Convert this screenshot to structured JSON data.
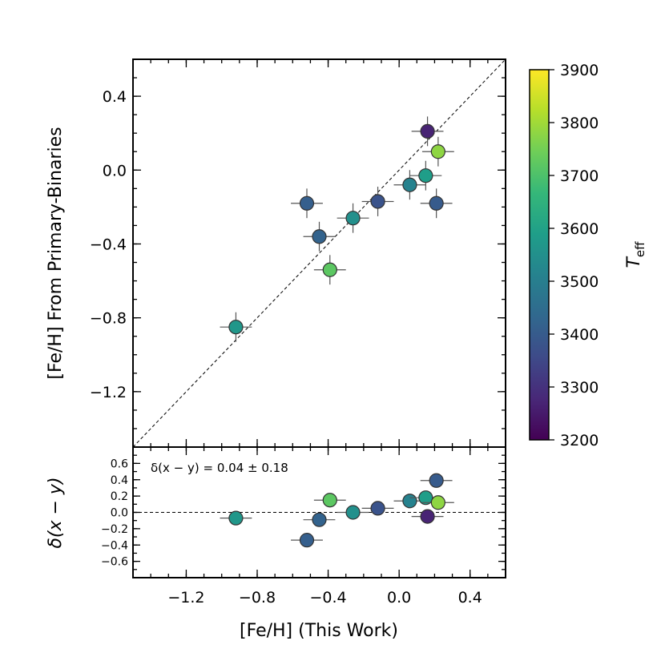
{
  "chart_data": [
    {
      "type": "scatter",
      "panel": "main",
      "xlabel": "[Fe/H] (This Work)",
      "ylabel": "[Fe/H] From Primary-Binaries",
      "xlim": [
        -1.5,
        0.6
      ],
      "ylim": [
        -1.5,
        0.6
      ],
      "x_ticks": [
        -1.2,
        -0.8,
        -0.4,
        0.0,
        0.4
      ],
      "x_tick_labels": [
        "−1.2",
        "−0.8",
        "−0.4",
        "0.0",
        "0.4"
      ],
      "y_ticks": [
        -1.2,
        -0.8,
        -0.4,
        0.0,
        0.4
      ],
      "y_tick_labels": [
        "−1.2",
        "−0.8",
        "−0.4",
        "0.0",
        "0.4"
      ],
      "reference_line": "y = x",
      "x_error": 0.09,
      "y_error": 0.08,
      "points": [
        {
          "x": -0.92,
          "y": -0.85,
          "teff": 3570
        },
        {
          "x": -0.52,
          "y": -0.18,
          "teff": 3410
        },
        {
          "x": -0.45,
          "y": -0.36,
          "teff": 3420
        },
        {
          "x": -0.39,
          "y": -0.54,
          "teff": 3720
        },
        {
          "x": -0.26,
          "y": -0.26,
          "teff": 3550
        },
        {
          "x": -0.12,
          "y": -0.17,
          "teff": 3380
        },
        {
          "x": 0.06,
          "y": -0.08,
          "teff": 3510
        },
        {
          "x": 0.15,
          "y": -0.03,
          "teff": 3590
        },
        {
          "x": 0.16,
          "y": 0.21,
          "teff": 3270
        },
        {
          "x": 0.21,
          "y": -0.18,
          "teff": 3400
        },
        {
          "x": 0.22,
          "y": 0.1,
          "teff": 3780
        }
      ]
    },
    {
      "type": "scatter",
      "panel": "residual",
      "ylabel": "δ(x − y)",
      "annotation": "δ(x − y) = 0.04 ± 0.18",
      "xlim": [
        -1.5,
        0.6
      ],
      "ylim": [
        -0.8,
        0.8
      ],
      "y_ticks": [
        -0.6,
        -0.4,
        -0.2,
        0.0,
        0.2,
        0.4,
        0.6
      ],
      "y_tick_labels": [
        "−0.6",
        "−0.4",
        "−0.2",
        "0.0",
        "0.2",
        "0.4",
        "0.6"
      ],
      "reference_line": "y = 0",
      "x_error": 0.09,
      "y_error": 0.05,
      "points": [
        {
          "x": -0.92,
          "y": -0.07,
          "teff": 3570
        },
        {
          "x": -0.52,
          "y": -0.34,
          "teff": 3410
        },
        {
          "x": -0.45,
          "y": -0.09,
          "teff": 3420
        },
        {
          "x": -0.39,
          "y": 0.15,
          "teff": 3720
        },
        {
          "x": -0.26,
          "y": 0.0,
          "teff": 3550
        },
        {
          "x": -0.12,
          "y": 0.05,
          "teff": 3380
        },
        {
          "x": 0.06,
          "y": 0.14,
          "teff": 3510
        },
        {
          "x": 0.15,
          "y": 0.18,
          "teff": 3590
        },
        {
          "x": 0.16,
          "y": -0.05,
          "teff": 3270
        },
        {
          "x": 0.21,
          "y": 0.39,
          "teff": 3400
        },
        {
          "x": 0.22,
          "y": 0.12,
          "teff": 3780
        }
      ]
    }
  ],
  "colorbar": {
    "label": "T",
    "label_sub": "eff",
    "range": [
      3200,
      3900
    ],
    "ticks": [
      3200,
      3300,
      3400,
      3500,
      3600,
      3700,
      3800,
      3900
    ],
    "colormap": [
      "#440154",
      "#482878",
      "#3e4a89",
      "#31688e",
      "#26828e",
      "#1f9e89",
      "#35b779",
      "#6ece58",
      "#b5de2b",
      "#fde725"
    ]
  },
  "colors": {
    "marker_edge": "#333333",
    "errorbar": "#555555",
    "reference_line": "#000000"
  }
}
